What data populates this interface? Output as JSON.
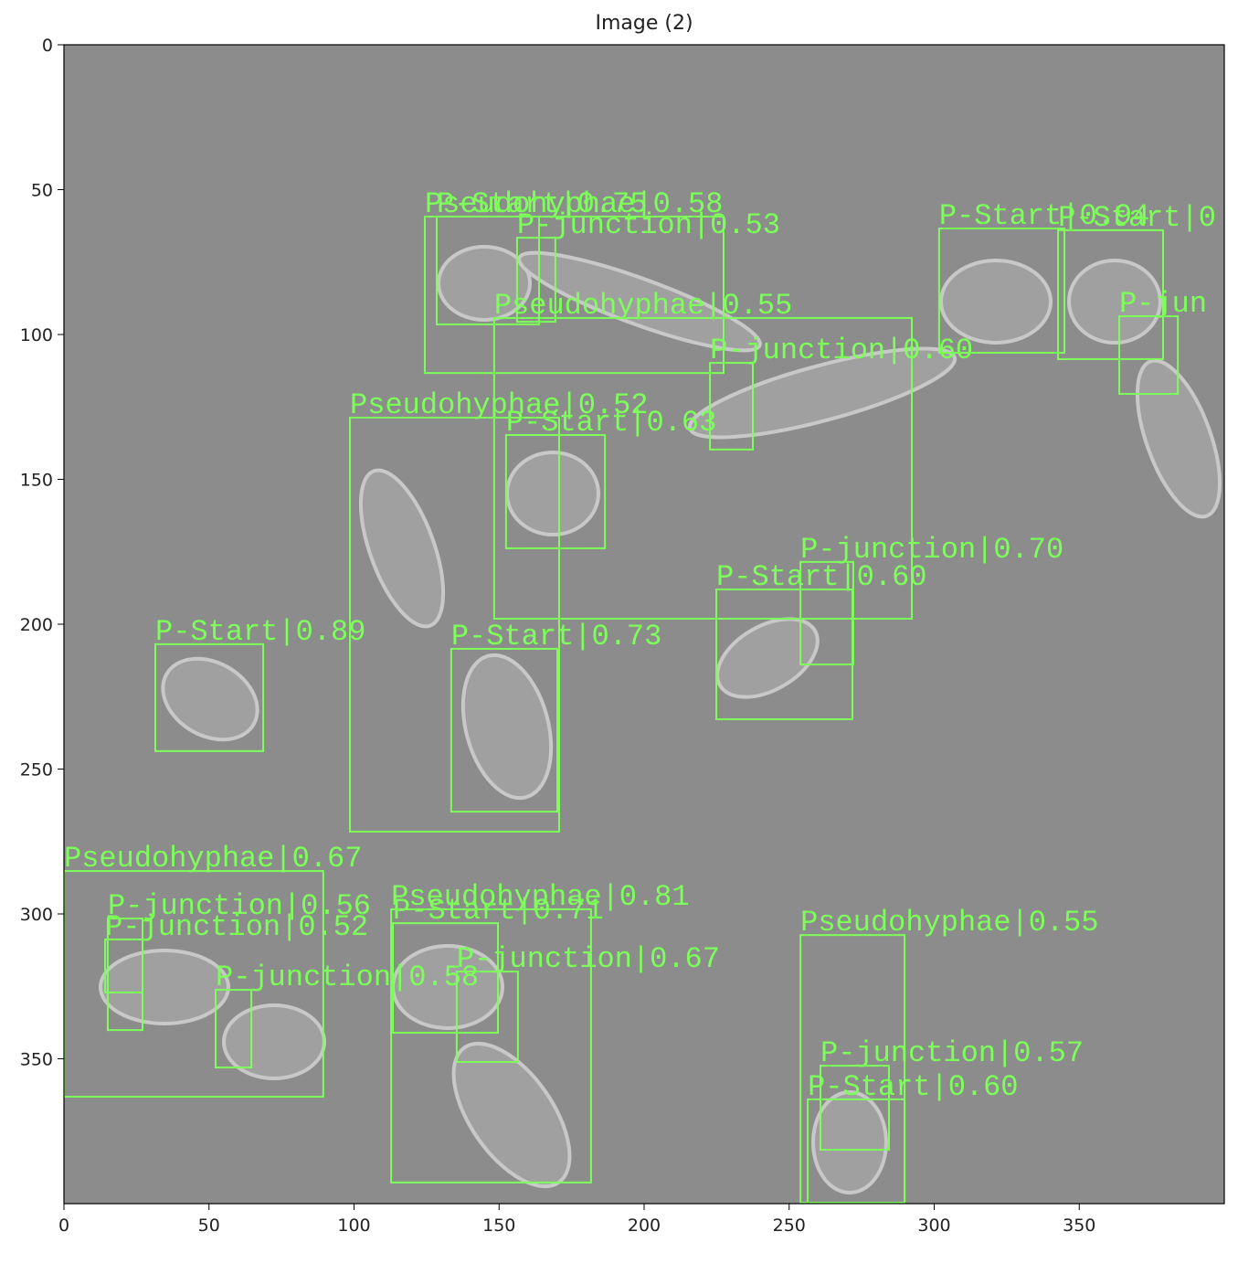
{
  "chart_data": {
    "type": "detections",
    "title": "Image (2)",
    "xlim": [
      0,
      400
    ],
    "ylim": [
      400,
      0
    ],
    "xticks": [
      0,
      50,
      100,
      150,
      200,
      250,
      300,
      350
    ],
    "yticks": [
      0,
      50,
      100,
      150,
      200,
      250,
      300,
      350
    ],
    "color": "#7dff5a",
    "boxes": [
      {
        "label": "Pseudohyphae|0.58",
        "x0": 124.4,
        "x1": 227.4,
        "y0": 59.3,
        "y1": 113.3
      },
      {
        "label": "P-Start|0.75",
        "x0": 128.5,
        "x1": 163.8,
        "y0": 59.3,
        "y1": 96.5
      },
      {
        "label": "P-junction|0.53",
        "x0": 156.2,
        "x1": 169.4,
        "y0": 66.6,
        "y1": 95.6
      },
      {
        "label": "Pseudohyphae|0.55",
        "x0": 148.3,
        "x1": 292.3,
        "y0": 94.3,
        "y1": 198.1
      },
      {
        "label": "P-junction|0.60",
        "x0": 222.7,
        "x1": 237.5,
        "y0": 109.8,
        "y1": 139.7
      },
      {
        "label": "P-Start|0.94",
        "x0": 301.7,
        "x1": 344.9,
        "y0": 63.4,
        "y1": 106.3
      },
      {
        "label": "P-Start|0",
        "x0": 342.7,
        "x1": 378.9,
        "y0": 64.0,
        "y1": 108.5
      },
      {
        "label": "P-jun",
        "x0": 363.8,
        "x1": 384.0,
        "y0": 93.7,
        "y1": 120.5
      },
      {
        "label": "Pseudohyphae|0.52",
        "x0": 98.6,
        "x1": 170.7,
        "y0": 128.7,
        "y1": 271.6
      },
      {
        "label": "P-Start|0.63",
        "x0": 152.4,
        "x1": 186.5,
        "y0": 134.7,
        "y1": 173.8
      },
      {
        "label": "P-junction|0.70",
        "x0": 253.9,
        "x1": 272.1,
        "y0": 178.5,
        "y1": 213.9
      },
      {
        "label": "P-Start|0.60",
        "x0": 224.9,
        "x1": 271.8,
        "y0": 188.0,
        "y1": 232.8
      },
      {
        "label": "P-Start|0.89",
        "x0": 31.5,
        "x1": 68.7,
        "y0": 206.9,
        "y1": 243.8
      },
      {
        "label": "P-Start|0.73",
        "x0": 133.5,
        "x1": 170.1,
        "y0": 208.5,
        "y1": 264.7
      },
      {
        "label": "Pseudohyphae|0.67",
        "x0": 0,
        "x1": 89.4,
        "y0": 285.2,
        "y1": 363.1
      },
      {
        "label": "P-junction|0.56",
        "x0": 15.1,
        "x1": 27.1,
        "y0": 301.6,
        "y1": 340.1
      },
      {
        "label": "P-junction|0.52",
        "x0": 14.2,
        "x1": 27.1,
        "y0": 308.8,
        "y1": 327.1
      },
      {
        "label": "P-junction|0.58",
        "x0": 52.3,
        "x1": 64.6,
        "y0": 326.2,
        "y1": 353.0
      },
      {
        "label": "Pseudohyphae|0.81",
        "x0": 112.8,
        "x1": 181.7,
        "y0": 298.4,
        "y1": 392.7
      },
      {
        "label": "P-Start|0.71",
        "x0": 113.4,
        "x1": 149.6,
        "y0": 303.2,
        "y1": 341.0
      },
      {
        "label": "P-junction|0.67",
        "x0": 135.4,
        "x1": 156.5,
        "y0": 319.9,
        "y1": 351.1
      },
      {
        "label": "Pseudohyphae|0.55",
        "x0": 253.9,
        "x1": 289.8,
        "y0": 307.3,
        "y1": 399.7
      },
      {
        "label": "P-junction|0.57",
        "x0": 260.8,
        "x1": 284.4,
        "y0": 352.4,
        "y1": 381.4
      },
      {
        "label": "P-Start|0.60",
        "x0": 256.4,
        "x1": 289.8,
        "y0": 364.0,
        "y1": 399.7
      }
    ]
  }
}
